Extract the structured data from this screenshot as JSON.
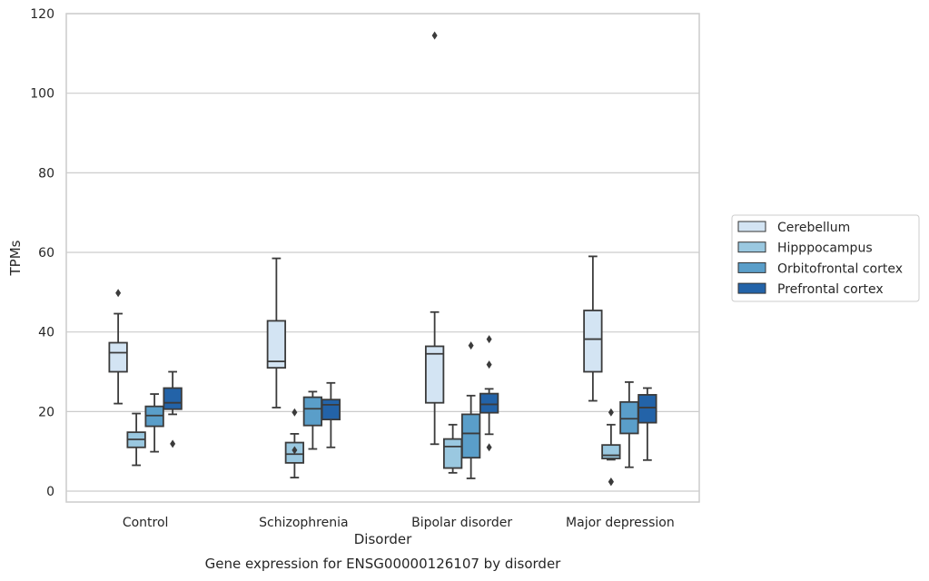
{
  "chart_data": {
    "type": "box",
    "title": "",
    "caption": "Gene expression for ENSG00000126107 by disorder",
    "xlabel": "Disorder",
    "ylabel": "TPMs",
    "ylim": [
      -3,
      120
    ],
    "yticks": [
      0,
      20,
      40,
      60,
      80,
      100,
      120
    ],
    "grid": "horizontal",
    "legend_position": "right",
    "categories": [
      "Control",
      "Schizophrenia",
      "Bipolar disorder",
      "Major depression"
    ],
    "series": [
      {
        "name": "Cerebellum",
        "color": "#d3e4f3",
        "boxes": [
          {
            "whislo": 22,
            "q1": 30,
            "med": 34.8,
            "q3": 37.3,
            "whishi": 44.6,
            "fliers": [
              49.8
            ]
          },
          {
            "whislo": 21,
            "q1": 31,
            "med": 32.6,
            "q3": 42.8,
            "whishi": 58.5,
            "fliers": []
          },
          {
            "whislo": 11.8,
            "q1": 22.2,
            "med": 34.5,
            "q3": 36.4,
            "whishi": 45,
            "fliers": [
              114.5
            ]
          },
          {
            "whislo": 22.7,
            "q1": 30,
            "med": 38.2,
            "q3": 45.4,
            "whishi": 59,
            "fliers": []
          }
        ]
      },
      {
        "name": "Hipppocampus",
        "color": "#9ac8e0",
        "boxes": [
          {
            "whislo": 6.5,
            "q1": 11,
            "med": 13,
            "q3": 14.8,
            "whishi": 19.5,
            "fliers": []
          },
          {
            "whislo": 3.4,
            "q1": 7.1,
            "med": 9.3,
            "q3": 12.2,
            "whishi": 14.4,
            "fliers": [
              10.3,
              19.8
            ]
          },
          {
            "whislo": 4.6,
            "q1": 5.8,
            "med": 11.2,
            "q3": 13.1,
            "whishi": 16.7,
            "fliers": []
          },
          {
            "whislo": 7.9,
            "q1": 8.2,
            "med": 9,
            "q3": 11.6,
            "whishi": 16.7,
            "fliers": [
              2.3,
              2.4,
              19.8
            ]
          }
        ]
      },
      {
        "name": "Orbitofrontal cortex",
        "color": "#5a9ec9",
        "boxes": [
          {
            "whislo": 9.9,
            "q1": 16.3,
            "med": 19,
            "q3": 21.3,
            "whishi": 24.4,
            "fliers": []
          },
          {
            "whislo": 10.6,
            "q1": 16.5,
            "med": 20.7,
            "q3": 23.6,
            "whishi": 25,
            "fliers": []
          },
          {
            "whislo": 3.2,
            "q1": 8.4,
            "med": 14.5,
            "q3": 19.3,
            "whishi": 24,
            "fliers": [
              36.6
            ]
          },
          {
            "whislo": 6,
            "q1": 14.5,
            "med": 18.2,
            "q3": 22.4,
            "whishi": 27.4,
            "fliers": []
          }
        ]
      },
      {
        "name": "Prefrontal cortex",
        "color": "#2363a8",
        "boxes": [
          {
            "whislo": 19.3,
            "q1": 20.6,
            "med": 22.2,
            "q3": 25.9,
            "whishi": 30,
            "fliers": [
              11.9
            ]
          },
          {
            "whislo": 11,
            "q1": 18,
            "med": 21.7,
            "q3": 23,
            "whishi": 27.2,
            "fliers": []
          },
          {
            "whislo": 14.3,
            "q1": 19.7,
            "med": 21.8,
            "q3": 24.5,
            "whishi": 25.7,
            "fliers": [
              11,
              31.8,
              38.2
            ]
          },
          {
            "whislo": 7.8,
            "q1": 17.2,
            "med": 21,
            "q3": 24.2,
            "whishi": 25.9,
            "fliers": []
          }
        ]
      }
    ]
  }
}
